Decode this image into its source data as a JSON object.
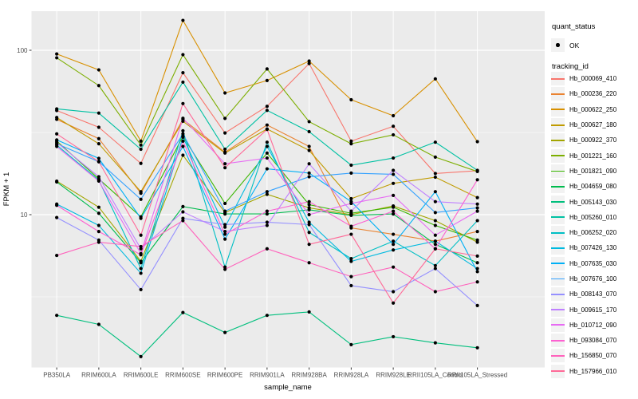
{
  "legend": {
    "quant_status_title": "quant_status",
    "quant_status_items": [
      {
        "label": "OK",
        "marker": "filled-point"
      }
    ],
    "tracking_title": "tracking_id"
  },
  "colors": {
    "panel_background": "#EBEBEB",
    "gridline": "#FFFFFF",
    "tick_mark": "#333333",
    "tick_label": "#4D4D4D",
    "point": "#000000",
    "legend_key_background": "#F2F2F2"
  },
  "chart_data": {
    "type": "line",
    "title": "",
    "xlabel": "sample_name",
    "ylabel": "FPKM + 1",
    "y_scale": "log10",
    "ylim": [
      1.18,
      173
    ],
    "yticks": [
      10,
      100
    ],
    "minor_gridlines": [
      3.1623,
      31.623
    ],
    "grid": true,
    "legend_position": "right",
    "point_marker": "filled-circle",
    "categories": [
      "PB350LA",
      "RRIM600LA",
      "RRIM600LE",
      "RRIM600SE",
      "RRIM600PE",
      "RRIM901LA",
      "RRIM928BA",
      "RRIM928LA",
      "RRIM928LE",
      "RRII105LA_Control",
      "RRII105LA_Stressed"
    ],
    "series": [
      {
        "name": "Hb_000069_410",
        "color": "#F8766D",
        "values": [
          43,
          34,
          20.5,
          73,
          31.4,
          45.6,
          83,
          28,
          34.5,
          17.8,
          18.5
        ]
      },
      {
        "name": "Hb_000236_220",
        "color": "#EA8331",
        "values": [
          38,
          29,
          13.5,
          38,
          24,
          35.1,
          26,
          8.3,
          7.6,
          6.9,
          7.9
        ]
      },
      {
        "name": "Hb_000622_250",
        "color": "#D89000",
        "values": [
          95,
          76,
          28,
          152,
          55,
          65.5,
          86,
          50,
          40,
          67,
          27.8
        ]
      },
      {
        "name": "Hb_000627_180",
        "color": "#C09B00",
        "values": [
          39,
          27,
          13.8,
          37,
          23.7,
          33.2,
          24.6,
          12.5,
          15.5,
          16.9,
          12.7
        ]
      },
      {
        "name": "Hb_000922_370",
        "color": "#A3A500",
        "values": [
          16,
          11.1,
          5.2,
          23,
          10.3,
          13.3,
          11,
          10,
          11.3,
          9.2,
          6.8
        ]
      },
      {
        "name": "Hb_001221_160",
        "color": "#7CAE00",
        "values": [
          90,
          61,
          26.5,
          94,
          38.5,
          77,
          36.8,
          27,
          30.6,
          22.4,
          18.3
        ]
      },
      {
        "name": "Hb_001821_090",
        "color": "#39B600",
        "values": [
          28,
          16.5,
          9.7,
          30,
          11.7,
          23.7,
          11.5,
          10.2,
          11.1,
          8.6,
          7
        ]
      },
      {
        "name": "Hb_004659_080",
        "color": "#00BB4E",
        "values": [
          15.8,
          10.2,
          5.1,
          11.2,
          10.1,
          10.1,
          10.7,
          9.9,
          10.1,
          6.6,
          5.1
        ]
      },
      {
        "name": "Hb_005143_030",
        "color": "#00BF7D",
        "values": [
          2.44,
          2.15,
          1.37,
          2.54,
          1.92,
          2.44,
          2.56,
          1.62,
          1.81,
          1.66,
          1.55
        ]
      },
      {
        "name": "Hb_005260_010",
        "color": "#00C1A3",
        "values": [
          44,
          41.5,
          25,
          64,
          25,
          43.1,
          32,
          20,
          22.1,
          27.6,
          18.6
        ]
      },
      {
        "name": "Hb_006252_020",
        "color": "#00BFC4",
        "values": [
          26.5,
          16.2,
          4.7,
          32.4,
          4.8,
          27.6,
          7.8,
          5.4,
          6.9,
          4.9,
          9.2
        ]
      },
      {
        "name": "Hb_007426_130",
        "color": "#00BAE0",
        "values": [
          11.6,
          8.6,
          4.4,
          29.6,
          8.4,
          26,
          9,
          5.2,
          6.1,
          6.9,
          4.7
        ]
      },
      {
        "name": "Hb_007635_030",
        "color": "#00B0F6",
        "values": [
          28.5,
          22,
          9.5,
          26,
          7.1,
          19,
          17.9,
          12,
          6.6,
          13.8,
          4.5
        ]
      },
      {
        "name": "Hb_007676_100",
        "color": "#35A2FF",
        "values": [
          27,
          21,
          12.4,
          31,
          10.5,
          13.8,
          17,
          17.9,
          17.6,
          10.3,
          11
        ]
      },
      {
        "name": "Hb_008143_070",
        "color": "#9590FF",
        "values": [
          9.6,
          7,
          3.5,
          9.5,
          8.7,
          9,
          8.7,
          3.7,
          3.4,
          4.7,
          2.8
        ]
      },
      {
        "name": "Hb_009615_170",
        "color": "#BF80FF",
        "values": [
          27.5,
          17,
          6.2,
          10.4,
          7.9,
          8.6,
          20.4,
          10.5,
          18.6,
          12,
          11.6
        ]
      },
      {
        "name": "Hb_010712_090",
        "color": "#E76BF3",
        "values": [
          26,
          16,
          5.8,
          38.6,
          20.4,
          22.1,
          10,
          11.7,
          13.1,
          7.5,
          10.5
        ]
      },
      {
        "name": "Hb_093084_070",
        "color": "#FD61D1",
        "values": [
          11.4,
          7.9,
          5.7,
          28,
          7.6,
          10.5,
          12,
          8.5,
          10.5,
          6.2,
          16.3
        ]
      },
      {
        "name": "Hb_156850_070",
        "color": "#FF62BC",
        "values": [
          5.65,
          6.8,
          6.4,
          9.2,
          4.65,
          6.2,
          5.1,
          4.2,
          4.8,
          3.4,
          3.9
        ]
      },
      {
        "name": "Hb_157966_010",
        "color": "#FF6A98",
        "values": [
          31,
          21,
          7.5,
          47.4,
          19.3,
          33,
          6.6,
          7.6,
          2.9,
          6.2,
          5.6
        ]
      }
    ]
  }
}
